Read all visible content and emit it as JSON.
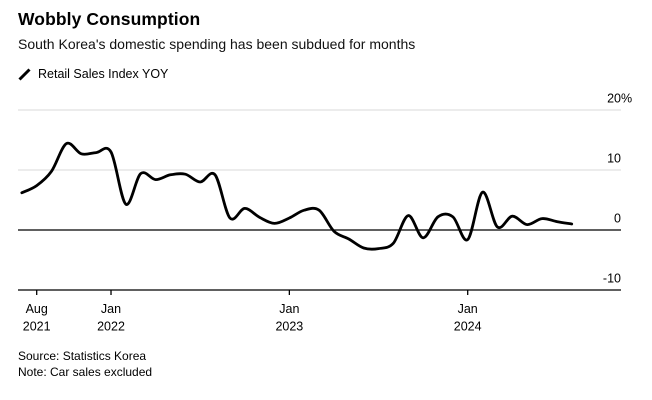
{
  "header": {
    "title": "Wobbly Consumption",
    "subtitle": "South Korea's domestic spending has been subdued for months"
  },
  "legend": {
    "marker": "line-slash",
    "series_label": "Retail Sales Index YOY"
  },
  "footer": {
    "source": "Source: Statistics Korea",
    "note": "Note: Car sales excluded"
  },
  "colors": {
    "background": "#ffffff",
    "series_line": "#000000",
    "zero_line": "#000000",
    "axis_line": "#000000",
    "gridline": "#d9d9d9",
    "text": "#000000"
  },
  "chart_data": {
    "type": "line",
    "title": "Wobbly Consumption",
    "series_name": "Retail Sales Index YOY",
    "unit": "%",
    "grid": "horizontal",
    "legend_position": "top-left",
    "ylim": [
      -10,
      20
    ],
    "x_range": [
      "2021-07",
      "2024-08"
    ],
    "x": [
      "2021-07",
      "2021-08",
      "2021-09",
      "2021-10",
      "2021-11",
      "2021-12",
      "2022-01",
      "2022-02",
      "2022-03",
      "2022-04",
      "2022-05",
      "2022-06",
      "2022-07",
      "2022-08",
      "2022-09",
      "2022-10",
      "2022-11",
      "2022-12",
      "2023-01",
      "2023-02",
      "2023-03",
      "2023-04",
      "2023-05",
      "2023-06",
      "2023-07",
      "2023-08",
      "2023-09",
      "2023-10",
      "2023-11",
      "2023-12",
      "2024-01",
      "2024-02",
      "2024-03",
      "2024-04",
      "2024-05",
      "2024-06",
      "2024-07",
      "2024-08"
    ],
    "values": [
      6.2,
      7.4,
      9.8,
      14.4,
      12.7,
      12.9,
      13.0,
      4.3,
      9.4,
      8.4,
      9.2,
      9.3,
      8.0,
      9.2,
      2.0,
      3.6,
      2.1,
      1.1,
      2.0,
      3.3,
      3.3,
      -0.2,
      -1.5,
      -3.0,
      -3.1,
      -2.2,
      2.4,
      -1.3,
      2.2,
      2.2,
      -1.6,
      6.3,
      0.5,
      2.3,
      0.9,
      1.9,
      1.4,
      1.0
    ],
    "y_ticks": [
      {
        "value": 20,
        "label": "20%"
      },
      {
        "value": 10,
        "label": "10"
      },
      {
        "value": 0,
        "label": "0"
      },
      {
        "value": -10,
        "label": "-10"
      }
    ],
    "x_ticks": [
      {
        "month_index": 1,
        "line1": "Aug",
        "line2": "2021"
      },
      {
        "month_index": 6,
        "line1": "Jan",
        "line2": "2022"
      },
      {
        "month_index": 18,
        "line1": "Jan",
        "line2": "2023"
      },
      {
        "month_index": 30,
        "line1": "Jan",
        "line2": "2024"
      }
    ]
  }
}
